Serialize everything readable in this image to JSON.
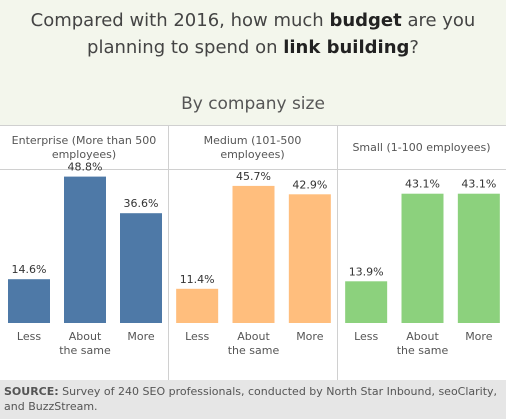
{
  "title": {
    "line1_prefix": "Compared with 2016, how much ",
    "line1_bold": "budget",
    "line1_suffix": " are you",
    "line2_prefix": "planning to spend on ",
    "line2_bold": "link building",
    "line2_suffix": "?"
  },
  "subtitle": "By company size",
  "source": {
    "label": "SOURCE:",
    "text": "Survey of 240 SEO professionals, conducted by North Star Inbound, seoClarity, and BuzzStream."
  },
  "chart_data": {
    "type": "bar",
    "categories": [
      "Less",
      "About the same",
      "More"
    ],
    "category_lines": [
      [
        "Less"
      ],
      [
        "About",
        "the same"
      ],
      [
        "More"
      ]
    ],
    "ylim": [
      0,
      55
    ],
    "grid": false,
    "panels": [
      {
        "title_lines": [
          "Enterprise (More than 500",
          "employees)"
        ],
        "values": [
          14.6,
          48.8,
          36.6
        ],
        "labels": [
          "14.6%",
          "48.8%",
          "36.6%"
        ],
        "color": "#4e79a7"
      },
      {
        "title_lines": [
          "Medium (101-500",
          "employees)"
        ],
        "values": [
          11.4,
          45.7,
          42.9
        ],
        "labels": [
          "11.4%",
          "45.7%",
          "42.9%"
        ],
        "color": "#ffbe7d"
      },
      {
        "title_lines": [
          "Small (1-100 employees)"
        ],
        "values": [
          13.9,
          43.1,
          43.1
        ],
        "labels": [
          "13.9%",
          "43.1%",
          "43.1%"
        ],
        "color": "#8cd17d"
      }
    ]
  }
}
